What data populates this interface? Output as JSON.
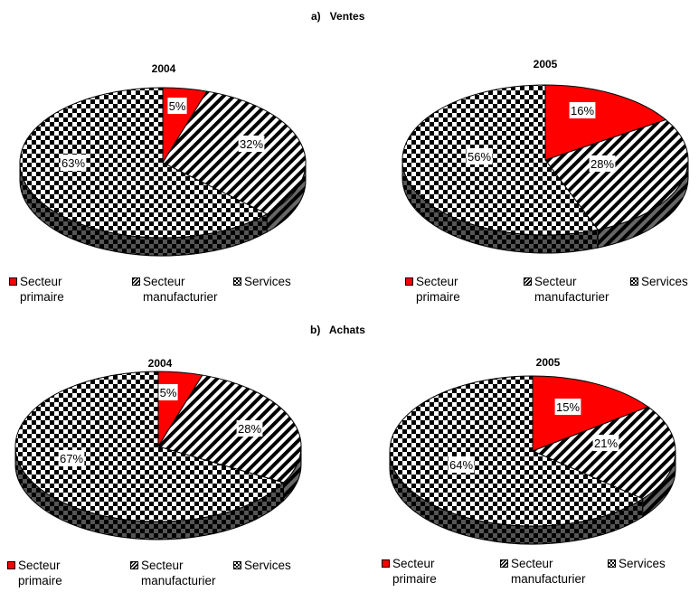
{
  "sections": [
    {
      "title": "a)   Ventes",
      "charts": [
        {
          "year": "2004",
          "slices": [
            {
              "label": "5%",
              "value": 5
            },
            {
              "label": "32%",
              "value": 32
            },
            {
              "label": "63%",
              "value": 63
            }
          ]
        },
        {
          "year": "2005",
          "slices": [
            {
              "label": "16%",
              "value": 16
            },
            {
              "label": "28%",
              "value": 28
            },
            {
              "label": "56%",
              "value": 56
            }
          ]
        }
      ]
    },
    {
      "title": "b)   Achats",
      "charts": [
        {
          "year": "2004",
          "slices": [
            {
              "label": "5%",
              "value": 5
            },
            {
              "label": "28%",
              "value": 28
            },
            {
              "label": "67%",
              "value": 67
            }
          ]
        },
        {
          "year": "2005",
          "slices": [
            {
              "label": "15%",
              "value": 15
            },
            {
              "label": "21%",
              "value": 21
            },
            {
              "label": "64%",
              "value": 64
            }
          ]
        }
      ]
    }
  ],
  "legend": [
    "Secteur\nprimaire",
    "Secteur\nmanufacturier",
    "Services"
  ],
  "colors": {
    "primaire": "#ff0000",
    "pattern_dark": "#000000",
    "pattern_light": "#ffffff",
    "outline": "#000000"
  },
  "chart_data": [
    {
      "type": "pie",
      "title": "2004",
      "categories": [
        "Secteur primaire",
        "Secteur manufacturier",
        "Services"
      ],
      "values": [
        5,
        32,
        63
      ]
    },
    {
      "type": "pie",
      "title": "2005",
      "categories": [
        "Secteur primaire",
        "Secteur manufacturier",
        "Services"
      ],
      "values": [
        16,
        28,
        56
      ]
    },
    {
      "type": "pie",
      "title": "2004",
      "categories": [
        "Secteur primaire",
        "Secteur manufacturier",
        "Services"
      ],
      "values": [
        5,
        28,
        67
      ]
    },
    {
      "type": "pie",
      "title": "2005",
      "categories": [
        "Secteur primaire",
        "Secteur manufacturier",
        "Services"
      ],
      "values": [
        15,
        21,
        64
      ]
    }
  ]
}
